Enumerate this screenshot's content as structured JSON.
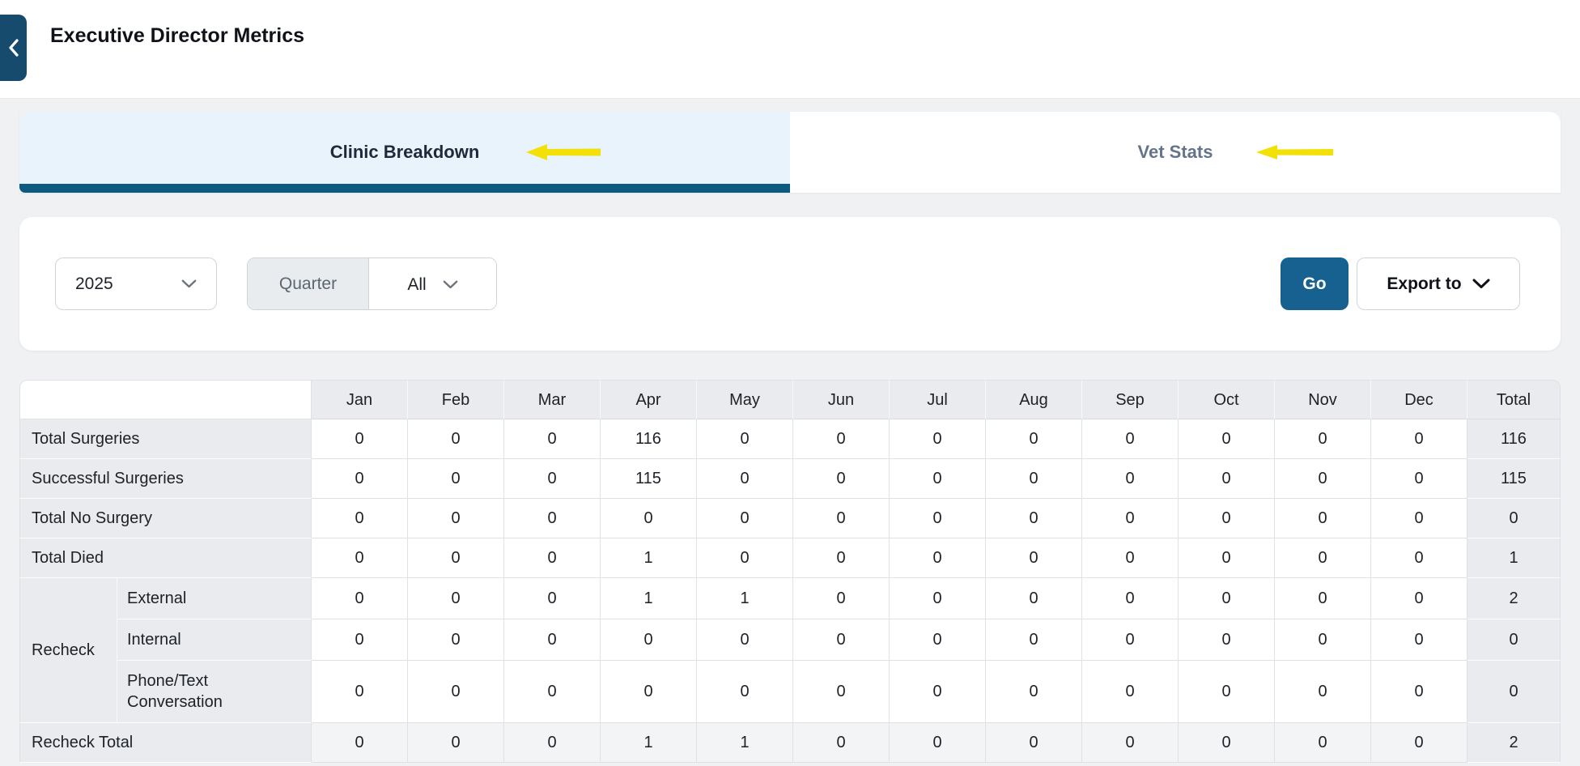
{
  "header": {
    "title": "Executive Director Metrics"
  },
  "tabs": [
    {
      "label": "Clinic Breakdown",
      "active": true
    },
    {
      "label": "Vet Stats",
      "active": false
    }
  ],
  "filters": {
    "year": "2025",
    "quarter_label": "Quarter",
    "quarter_value": "All",
    "go_label": "Go",
    "export_label": "Export to"
  },
  "table": {
    "columns": [
      "Jan",
      "Feb",
      "Mar",
      "Apr",
      "May",
      "Jun",
      "Jul",
      "Aug",
      "Sep",
      "Oct",
      "Nov",
      "Dec",
      "Total"
    ],
    "rows": [
      {
        "type": "simple",
        "label": "Total Surgeries",
        "values": [
          0,
          0,
          0,
          116,
          0,
          0,
          0,
          0,
          0,
          0,
          0,
          0,
          116
        ]
      },
      {
        "type": "simple",
        "label": "Successful Surgeries",
        "values": [
          0,
          0,
          0,
          115,
          0,
          0,
          0,
          0,
          0,
          0,
          0,
          0,
          115
        ]
      },
      {
        "type": "simple",
        "label": "Total No Surgery",
        "values": [
          0,
          0,
          0,
          0,
          0,
          0,
          0,
          0,
          0,
          0,
          0,
          0,
          0
        ]
      },
      {
        "type": "simple",
        "label": "Total Died",
        "values": [
          0,
          0,
          0,
          1,
          0,
          0,
          0,
          0,
          0,
          0,
          0,
          0,
          1
        ]
      },
      {
        "type": "group-first",
        "group": "Recheck",
        "group_span": 3,
        "label": "External",
        "values": [
          0,
          0,
          0,
          1,
          1,
          0,
          0,
          0,
          0,
          0,
          0,
          0,
          2
        ]
      },
      {
        "type": "group",
        "label": "Internal",
        "values": [
          0,
          0,
          0,
          0,
          0,
          0,
          0,
          0,
          0,
          0,
          0,
          0,
          0
        ]
      },
      {
        "type": "group",
        "label": "Phone/Text Conversation",
        "values": [
          0,
          0,
          0,
          0,
          0,
          0,
          0,
          0,
          0,
          0,
          0,
          0,
          0
        ]
      },
      {
        "type": "total",
        "label": "Recheck Total",
        "values": [
          0,
          0,
          0,
          1,
          1,
          0,
          0,
          0,
          0,
          0,
          0,
          0,
          2
        ]
      }
    ]
  },
  "colors": {
    "back_button": "#174b6e",
    "tab_underline": "#0d5a80",
    "active_tab_bg": "#e9f3fb",
    "go_button": "#16618f",
    "annotation_arrow_yellow": "#f2e006",
    "header_cell_bg": "#e9ebee",
    "page_bg": "#f0f1f3"
  }
}
